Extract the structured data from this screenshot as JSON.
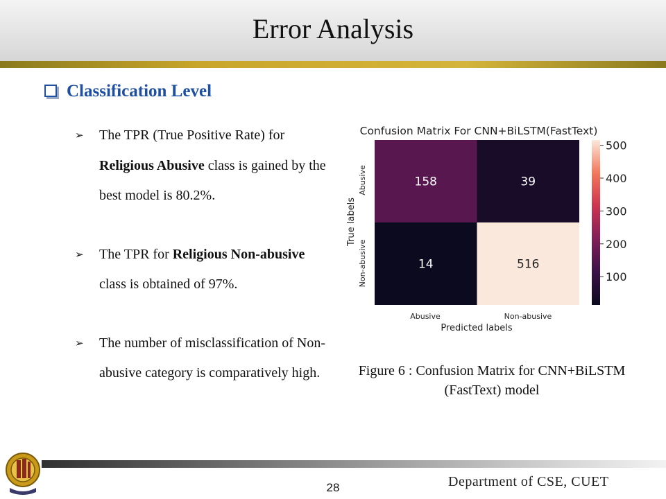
{
  "slide": {
    "title": "Error Analysis",
    "section_heading": "Classification Level",
    "bullets": [
      {
        "pre": "The TPR (True Positive Rate) for ",
        "bold": "Religious Abusive",
        "post": " class is gained by the best model is 80.2%."
      },
      {
        "pre": "The TPR for ",
        "bold": "Religious Non-abusive",
        "post": " class is obtained of 97%."
      },
      {
        "pre": "The number of misclassification of Non-abusive category is comparatively high.",
        "bold": "",
        "post": ""
      }
    ],
    "caption_line1": "Figure 6 : Confusion Matrix for CNN+BiLSTM",
    "caption_line2": "(FastText) model",
    "page_number": "28",
    "department": "Department of CSE, CUET"
  },
  "chart_data": {
    "type": "heatmap",
    "title": "Confusion Matrix For CNN+BiLSTM(FastText)",
    "xlabel": "Predicted labels",
    "ylabel": "True labels",
    "x_categories": [
      "Abusive",
      "Non-abusive"
    ],
    "y_categories": [
      "Abusive",
      "Non-abusive"
    ],
    "values": [
      [
        158,
        39
      ],
      [
        14,
        516
      ]
    ],
    "colorbar_ticks": [
      100,
      200,
      300,
      400,
      500
    ],
    "colorbar_range": [
      14,
      516
    ],
    "colors": {
      "low": "#0c0a1e",
      "mid": "#6b1c52",
      "high": "#f9e3d6"
    }
  }
}
